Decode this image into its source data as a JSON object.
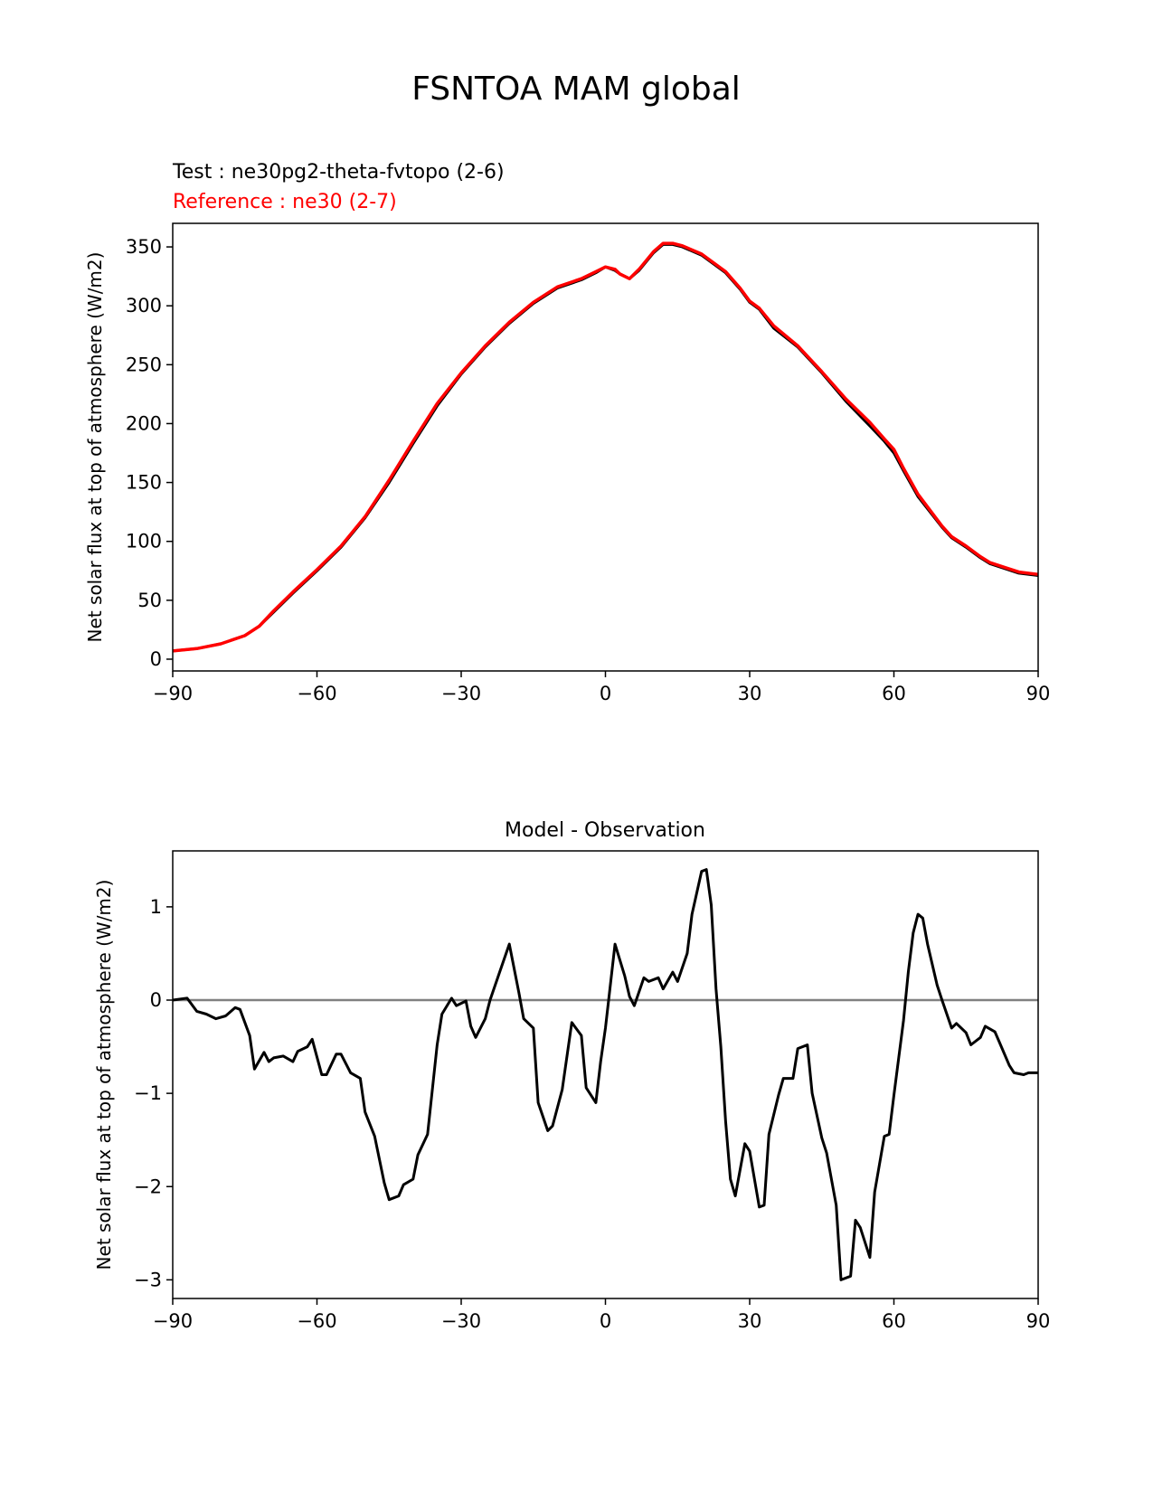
{
  "figure_title": "FSNTOA MAM global",
  "chart_data": [
    {
      "type": "line",
      "test_label": "Test : ne30pg2-theta-fvtopo (2-6)",
      "reference_label": "Reference : ne30 (2-7)",
      "title": "",
      "xlabel": "",
      "ylabel": "Net solar flux at top of atmosphere (W/m2)",
      "xlim": [
        -90,
        90
      ],
      "ylim": [
        -10,
        370
      ],
      "xticks": [
        -90,
        -60,
        -30,
        0,
        30,
        60,
        90
      ],
      "xtick_labels": [
        "−90",
        "−60",
        "−30",
        "0",
        "30",
        "60",
        "90"
      ],
      "yticks": [
        0,
        50,
        100,
        150,
        200,
        250,
        300,
        350
      ],
      "ytick_labels": [
        "0",
        "50",
        "100",
        "150",
        "200",
        "250",
        "300",
        "350"
      ],
      "colors": {
        "test": "#000000",
        "reference": "#ff0000"
      },
      "series": [
        {
          "name": "Test",
          "x": [
            -90,
            -85,
            -80,
            -75,
            -72,
            -69,
            -65,
            -60,
            -55,
            -50,
            -45,
            -40,
            -35,
            -30,
            -25,
            -20,
            -15,
            -10,
            -5,
            -2,
            0,
            2,
            3,
            5,
            7,
            10,
            12,
            14,
            16,
            20,
            25,
            28,
            30,
            32,
            35,
            40,
            45,
            50,
            55,
            58,
            60,
            62,
            65,
            70,
            72,
            75,
            78,
            80,
            83,
            86,
            90
          ],
          "values": [
            7,
            9,
            13,
            20,
            28,
            40,
            56,
            75,
            95,
            120,
            150,
            183,
            215,
            242,
            265,
            285,
            302,
            315,
            322,
            328,
            333,
            330,
            327,
            323,
            330,
            345,
            352,
            352,
            350,
            343,
            328,
            314,
            303,
            297,
            281,
            265,
            243,
            219,
            198,
            185,
            175,
            160,
            138,
            112,
            103,
            95,
            86,
            81,
            77,
            73,
            71
          ]
        },
        {
          "name": "Reference",
          "x": [
            -90,
            -85,
            -80,
            -75,
            -72,
            -69,
            -65,
            -60,
            -55,
            -50,
            -45,
            -40,
            -35,
            -30,
            -25,
            -20,
            -15,
            -10,
            -5,
            -2,
            0,
            2,
            3,
            5,
            7,
            10,
            12,
            14,
            16,
            20,
            25,
            28,
            30,
            32,
            35,
            40,
            45,
            50,
            55,
            58,
            60,
            62,
            65,
            70,
            72,
            75,
            78,
            80,
            83,
            86,
            90
          ],
          "values": [
            7,
            9,
            13,
            20,
            28,
            41,
            57,
            76,
            96,
            121,
            152,
            185,
            217,
            243,
            266,
            286,
            303,
            316,
            323,
            329,
            333,
            331,
            327,
            323,
            331,
            346,
            353,
            353,
            351,
            344,
            329,
            315,
            304,
            298,
            283,
            266,
            244,
            221,
            201,
            187,
            178,
            162,
            140,
            113,
            104,
            96,
            87,
            82,
            78,
            74,
            72
          ]
        }
      ]
    },
    {
      "type": "line",
      "title": "Model - Observation",
      "xlabel": "",
      "ylabel": "Net solar flux at top of atmosphere (W/m2)",
      "xlim": [
        -90,
        90
      ],
      "ylim": [
        -3.2,
        1.6
      ],
      "xticks": [
        -90,
        -60,
        -30,
        0,
        30,
        60,
        90
      ],
      "xtick_labels": [
        "−90",
        "−60",
        "−30",
        "0",
        "30",
        "60",
        "90"
      ],
      "yticks": [
        -3,
        -2,
        -1,
        0,
        1
      ],
      "ytick_labels": [
        "−3",
        "−2",
        "−1",
        "0",
        "1"
      ],
      "zero_line": {
        "y": 0,
        "color": "#808080"
      },
      "colors": {
        "diff": "#000000"
      },
      "series": [
        {
          "name": "Model - Observation",
          "x": [
            -90,
            -87,
            -85,
            -83,
            -81,
            -79,
            -77,
            -76,
            -74,
            -73,
            -71,
            -70,
            -69,
            -67,
            -65,
            -64,
            -62,
            -61,
            -59,
            -58,
            -56,
            -55,
            -53,
            -51,
            -50,
            -48,
            -46,
            -45,
            -43,
            -42,
            -40,
            -39,
            -37,
            -35,
            -34,
            -32,
            -31,
            -29,
            -28,
            -27,
            -25,
            -24,
            -22,
            -20,
            -18,
            -17,
            -15,
            -14,
            -12,
            -11,
            -9,
            -7,
            -5,
            -4,
            -2,
            -1,
            0,
            2,
            4,
            5,
            6,
            8,
            9,
            11,
            12,
            14,
            15,
            17,
            18,
            20,
            21,
            22,
            23,
            24,
            25,
            26,
            27,
            29,
            30,
            32,
            33,
            34,
            36,
            37,
            39,
            40,
            42,
            43,
            45,
            46,
            48,
            49,
            51,
            52,
            53,
            55,
            56,
            58,
            59,
            60,
            62,
            63,
            64,
            65,
            66,
            67,
            69,
            70,
            72,
            73,
            75,
            76,
            78,
            79,
            81,
            82,
            84,
            85,
            87,
            88,
            90
          ],
          "values": [
            0.0,
            0.02,
            -0.12,
            -0.15,
            -0.2,
            -0.17,
            -0.08,
            -0.1,
            -0.38,
            -0.74,
            -0.56,
            -0.66,
            -0.62,
            -0.6,
            -0.66,
            -0.55,
            -0.5,
            -0.42,
            -0.8,
            -0.8,
            -0.58,
            -0.58,
            -0.78,
            -0.84,
            -1.2,
            -1.46,
            -1.96,
            -2.14,
            -2.1,
            -1.98,
            -1.92,
            -1.66,
            -1.44,
            -0.48,
            -0.15,
            0.02,
            -0.06,
            -0.01,
            -0.28,
            -0.4,
            -0.2,
            0.0,
            0.3,
            0.6,
            0.08,
            -0.2,
            -0.3,
            -1.1,
            -1.4,
            -1.35,
            -0.96,
            -0.24,
            -0.38,
            -0.94,
            -1.1,
            -0.66,
            -0.3,
            0.6,
            0.26,
            0.04,
            -0.06,
            0.24,
            0.2,
            0.24,
            0.12,
            0.3,
            0.2,
            0.5,
            0.92,
            1.38,
            1.4,
            1.02,
            0.12,
            -0.5,
            -1.3,
            -1.92,
            -2.1,
            -1.54,
            -1.62,
            -2.22,
            -2.2,
            -1.44,
            -1.02,
            -0.84,
            -0.84,
            -0.52,
            -0.48,
            -1.0,
            -1.48,
            -1.64,
            -2.2,
            -3.0,
            -2.96,
            -2.36,
            -2.44,
            -2.76,
            -2.06,
            -1.46,
            -1.44,
            -1.02,
            -0.22,
            0.3,
            0.72,
            0.92,
            0.88,
            0.6,
            0.16,
            0.0,
            -0.3,
            -0.25,
            -0.35,
            -0.48,
            -0.4,
            -0.28,
            -0.34,
            -0.46,
            -0.7,
            -0.78,
            -0.8,
            -0.78,
            -0.78
          ]
        }
      ]
    }
  ]
}
